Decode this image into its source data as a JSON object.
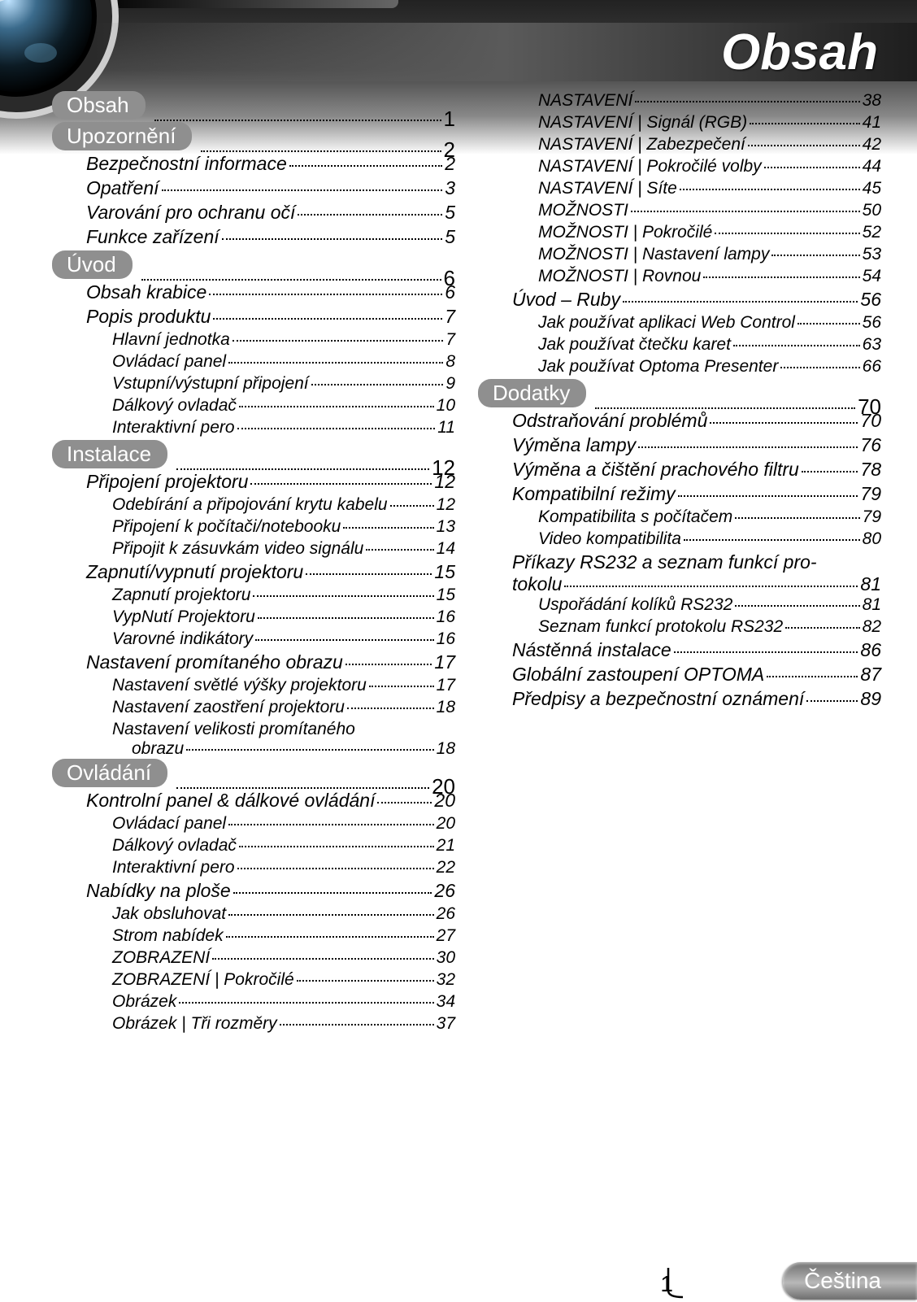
{
  "title": "Obsah",
  "footer": {
    "page_no": "1",
    "lang": "Čeština"
  },
  "colors": {
    "pill_bg": "#8f8f8f",
    "pill_fg": "#ffffff",
    "header_grad_top": "#222222",
    "header_grad_bot": "#ffffff",
    "footer_grad_a": "#6e6e6e",
    "footer_grad_b": "#b8b8b8"
  },
  "typography": {
    "title_pt": 62,
    "lvl0_pt": 26,
    "lvl1_pt": 23,
    "lvl2_pt": 21
  },
  "toc": {
    "left": [
      {
        "type": "pill",
        "label": "Obsah",
        "page": "1"
      },
      {
        "type": "pill",
        "label": "Upozornění",
        "page": "2"
      },
      {
        "level": 1,
        "label": "Bezpečnostní informace",
        "page": "2"
      },
      {
        "level": 1,
        "label": "Opatření",
        "page": "3"
      },
      {
        "level": 1,
        "label": "Varování pro ochranu očí",
        "page": "5"
      },
      {
        "level": 1,
        "label": "Funkce zařízení",
        "page": "5"
      },
      {
        "type": "pill",
        "label": "Úvod",
        "page": "6"
      },
      {
        "level": 1,
        "label": "Obsah krabice",
        "page": "6"
      },
      {
        "level": 1,
        "label": "Popis produktu",
        "page": "7"
      },
      {
        "level": 2,
        "label": "Hlavní jednotka",
        "page": "7"
      },
      {
        "level": 2,
        "label": "Ovládací panel",
        "page": "8"
      },
      {
        "level": 2,
        "label": "Vstupní/výstupní připojení",
        "page": "9"
      },
      {
        "level": 2,
        "label": "Dálkový ovladač",
        "page": "10"
      },
      {
        "level": 2,
        "label": "Interaktivní pero",
        "page": "11"
      },
      {
        "type": "pill",
        "label": "Instalace",
        "page": "12"
      },
      {
        "level": 1,
        "label": "Připojení projektoru",
        "page": "12"
      },
      {
        "level": 2,
        "label": "Odebírání a připojování krytu kabelu",
        "page": "12"
      },
      {
        "level": 2,
        "label": "Připojení k počítači/notebooku",
        "page": "13"
      },
      {
        "level": 2,
        "label": "Připojit k zásuvkám video signálu",
        "page": "14"
      },
      {
        "level": 1,
        "label": "Zapnutí/vypnutí projektoru",
        "page": "15"
      },
      {
        "level": 2,
        "label": "Zapnutí projektoru",
        "page": "15"
      },
      {
        "level": 2,
        "label": "VypNutí Projektoru",
        "page": "16"
      },
      {
        "level": 2,
        "label": "Varovné indikátory",
        "page": "16"
      },
      {
        "level": 1,
        "label": "Nastavení promítaného obrazu",
        "page": "17"
      },
      {
        "level": 2,
        "label": "Nastavení světlé výšky projektoru",
        "page": "17"
      },
      {
        "level": 2,
        "label": "Nastavení zaostření projektoru",
        "page": "18"
      },
      {
        "level": 2,
        "wrap": true,
        "label1": "Nastavení velikosti promítaného",
        "label2": "obrazu",
        "page": "18"
      },
      {
        "type": "pill",
        "label": "Ovládání",
        "page": "20"
      },
      {
        "level": 1,
        "label": "Kontrolní panel & dálkové ovládání",
        "page": "20",
        "tightDots": true
      },
      {
        "level": 2,
        "label": "Ovládací panel",
        "page": "20"
      },
      {
        "level": 2,
        "label": "Dálkový ovladač",
        "page": "21"
      },
      {
        "level": 2,
        "label": "Interaktivní pero",
        "page": "22"
      },
      {
        "level": 1,
        "label": "Nabídky na ploše",
        "page": "26"
      },
      {
        "level": 2,
        "label": "Jak obsluhovat",
        "page": "26"
      },
      {
        "level": 2,
        "label": "Strom nabídek",
        "page": "27"
      },
      {
        "level": 2,
        "label": "ZOBRAZENÍ",
        "page": "30"
      },
      {
        "level": 2,
        "label": "ZOBRAZENÍ | Pokročilé",
        "page": "32"
      },
      {
        "level": 2,
        "label": "Obrázek",
        "page": "34"
      },
      {
        "level": 2,
        "label": "Obrázek | Tři rozměry",
        "page": "37"
      }
    ],
    "right": [
      {
        "level": 2,
        "label": "NASTAVENÍ",
        "page": "38"
      },
      {
        "level": 2,
        "label": "NASTAVENÍ | Signál (RGB)",
        "page": "41"
      },
      {
        "level": 2,
        "label": "NASTAVENÍ | Zabezpečení",
        "page": "42"
      },
      {
        "level": 2,
        "label": "NASTAVENÍ | Pokročilé volby",
        "page": "44"
      },
      {
        "level": 2,
        "label": "NASTAVENÍ | Síte",
        "page": "45"
      },
      {
        "level": 2,
        "label": "MOŽNOSTI",
        "page": "50"
      },
      {
        "level": 2,
        "label": "MOŽNOSTI | Pokročilé",
        "page": "52"
      },
      {
        "level": 2,
        "label": "MOŽNOSTI | Nastavení lampy",
        "page": "53"
      },
      {
        "level": 2,
        "label": "MOŽNOSTI | Rovnou",
        "page": "54"
      },
      {
        "level": 1,
        "label": "Úvod – Ruby",
        "page": "56"
      },
      {
        "level": 2,
        "label": "Jak používat aplikaci Web Control",
        "page": "56"
      },
      {
        "level": 2,
        "label": "Jak používat čtečku karet",
        "page": "63"
      },
      {
        "level": 2,
        "label": "Jak používat Optoma Presenter",
        "page": "66"
      },
      {
        "type": "pill",
        "label": "Dodatky",
        "page": "70"
      },
      {
        "level": 1,
        "label": "Odstraňování problémů",
        "page": "70"
      },
      {
        "level": 1,
        "label": "Výměna lampy",
        "page": "76"
      },
      {
        "level": 1,
        "label": "Výměna a čištění prachového filtru",
        "page": "78"
      },
      {
        "level": 1,
        "label": "Kompatibilní režimy",
        "page": "79"
      },
      {
        "level": 2,
        "label": "Kompatibilita s počítačem",
        "page": "79"
      },
      {
        "level": 2,
        "label": "Video kompatibilita",
        "page": "80"
      },
      {
        "level": 1,
        "wrap": true,
        "label1": "Příkazy RS232 a seznam funkcí pro-",
        "label2": "tokolu",
        "page": "81"
      },
      {
        "level": 2,
        "label": "Uspořádání kolíků RS232",
        "page": "81"
      },
      {
        "level": 2,
        "label": "Seznam funkcí protokolu RS232",
        "page": "82"
      },
      {
        "level": 1,
        "label": "Nástěnná instalace",
        "page": "86"
      },
      {
        "level": 1,
        "label": "Globální zastoupení OPTOMA",
        "page": "87"
      },
      {
        "level": 1,
        "label": "Předpisy a bezpečnostní oznámení",
        "page": "89",
        "tightDots": true
      }
    ]
  }
}
